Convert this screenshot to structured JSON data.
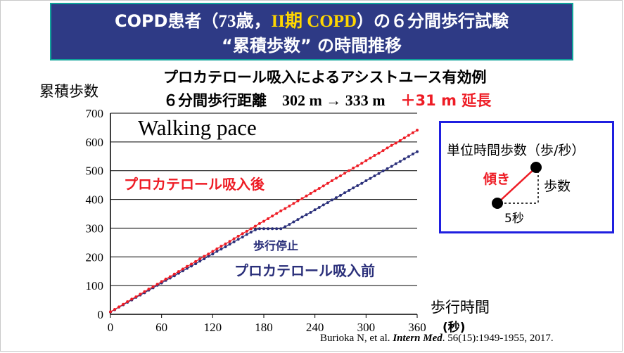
{
  "title": {
    "line1_pre": "COPD患者（",
    "line1_age": "73歳，",
    "line1_stage": "II期 COPD",
    "line1_post": "）の６分間歩行試験",
    "line2": "“累積歩数” の時間推移"
  },
  "subtitle": {
    "line1": "プロカテロール吸入によるアシストユース有効例",
    "line2_pre": "６分間歩行距離",
    "line2_values": "302 m → 333 m",
    "line2_gain": "＋31 m 延長"
  },
  "citation": {
    "authors": "Burioka N, et al. ",
    "journal": "Intern Med",
    "rest": ". 56(15):1949-1955, 2017."
  },
  "slope_box": {
    "title": "単位時間歩数（歩/秒）",
    "slope_label": "傾き",
    "steps_label": "歩数",
    "time_label": "5秒"
  },
  "chart_data": {
    "type": "scatter",
    "title": "Walking pace",
    "xlabel": "歩行時間",
    "xunit": "(秒)",
    "ylabel": "累積歩数",
    "xlim": [
      0,
      360
    ],
    "ylim": [
      0,
      700
    ],
    "xticks": [
      0,
      60,
      120,
      180,
      240,
      300,
      360
    ],
    "yticks": [
      0,
      100,
      200,
      300,
      400,
      500,
      600,
      700
    ],
    "grid": "horizontal",
    "sample_interval": 5,
    "series": [
      {
        "name": "プロカテロール吸入後",
        "color": "#ee1c25",
        "x": [
          0,
          5,
          10,
          15,
          20,
          25,
          30,
          35,
          40,
          45,
          50,
          55,
          60,
          65,
          70,
          75,
          80,
          85,
          90,
          95,
          100,
          105,
          110,
          115,
          120,
          125,
          130,
          135,
          140,
          145,
          150,
          155,
          160,
          165,
          170,
          175,
          180,
          185,
          190,
          195,
          200,
          205,
          210,
          215,
          220,
          225,
          230,
          235,
          240,
          245,
          250,
          255,
          260,
          265,
          270,
          275,
          280,
          285,
          290,
          295,
          300,
          305,
          310,
          315,
          320,
          325,
          330,
          335,
          340,
          345,
          350,
          355,
          360
        ],
        "y": [
          9,
          17,
          26,
          35,
          44,
          53,
          61,
          70,
          79,
          88,
          96,
          105,
          114,
          123,
          131,
          140,
          149,
          158,
          167,
          175,
          184,
          193,
          202,
          210,
          219,
          228,
          237,
          245,
          254,
          263,
          272,
          281,
          289,
          298,
          307,
          316,
          324,
          333,
          342,
          351,
          360,
          368,
          377,
          386,
          395,
          403,
          412,
          421,
          430,
          438,
          447,
          456,
          465,
          474,
          482,
          491,
          500,
          509,
          517,
          526,
          535,
          544,
          553,
          561,
          570,
          579,
          588,
          596,
          605,
          614,
          623,
          632,
          641
        ]
      },
      {
        "name": "プロカテロール吸入前",
        "color": "#2a2f7a",
        "x": [
          0,
          5,
          10,
          15,
          20,
          25,
          30,
          35,
          40,
          45,
          50,
          55,
          60,
          65,
          70,
          75,
          80,
          85,
          90,
          95,
          100,
          105,
          110,
          115,
          120,
          125,
          130,
          135,
          140,
          145,
          150,
          155,
          160,
          165,
          170,
          175,
          180,
          185,
          190,
          195,
          200,
          205,
          210,
          215,
          220,
          225,
          230,
          235,
          240,
          245,
          250,
          255,
          260,
          265,
          270,
          275,
          280,
          285,
          290,
          295,
          300,
          305,
          310,
          315,
          320,
          325,
          330,
          335,
          340,
          345,
          350,
          355,
          360
        ],
        "y": [
          8,
          16,
          25,
          33,
          42,
          50,
          59,
          67,
          75,
          84,
          92,
          101,
          109,
          118,
          126,
          134,
          143,
          151,
          160,
          168,
          176,
          185,
          193,
          202,
          210,
          219,
          227,
          235,
          244,
          252,
          261,
          269,
          278,
          286,
          294,
          298,
          298,
          298,
          298,
          298,
          298,
          305,
          313,
          322,
          330,
          339,
          347,
          355,
          364,
          372,
          381,
          389,
          398,
          406,
          414,
          423,
          431,
          440,
          448,
          456,
          465,
          473,
          482,
          490,
          499,
          507,
          515,
          524,
          532,
          541,
          549,
          558,
          566
        ]
      }
    ],
    "annotations": [
      "歩行停止"
    ]
  }
}
